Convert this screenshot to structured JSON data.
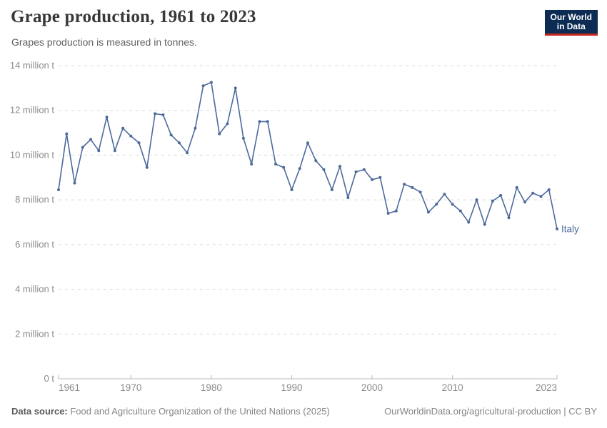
{
  "header": {
    "title": "Grape production, 1961 to 2023",
    "subtitle": "Grapes production is measured in tonnes.",
    "logo": {
      "line1": "Our World",
      "line2": "in Data",
      "bg_color": "#0d2c54",
      "accent_color": "#c5281c"
    }
  },
  "footer": {
    "source_label": "Data source:",
    "source_text": " Food and Agriculture Organization of the United Nations (2025)",
    "credit": "OurWorldinData.org/agricultural-production | CC BY"
  },
  "chart_data": {
    "type": "line",
    "title": "Grape production, 1961 to 2023",
    "unit": "tonnes",
    "xlim": [
      1961,
      2023
    ],
    "ylim": [
      0,
      14
    ],
    "grid": "horizontal-dashed",
    "legend_position": "end-of-line-label",
    "x": [
      1961,
      1962,
      1963,
      1964,
      1965,
      1966,
      1967,
      1968,
      1969,
      1970,
      1971,
      1972,
      1973,
      1974,
      1975,
      1976,
      1977,
      1978,
      1979,
      1980,
      1981,
      1982,
      1983,
      1984,
      1985,
      1986,
      1987,
      1988,
      1989,
      1990,
      1991,
      1992,
      1993,
      1994,
      1995,
      1996,
      1997,
      1998,
      1999,
      2000,
      2001,
      2002,
      2003,
      2004,
      2005,
      2006,
      2007,
      2008,
      2009,
      2010,
      2011,
      2012,
      2013,
      2014,
      2015,
      2016,
      2017,
      2018,
      2019,
      2020,
      2021,
      2022,
      2023
    ],
    "series": [
      {
        "name": "Italy",
        "color": "#4c6a9c",
        "unit_scale": "million tonnes",
        "values": [
          8.45,
          10.95,
          8.75,
          10.35,
          10.7,
          10.2,
          11.7,
          10.2,
          11.2,
          10.85,
          10.55,
          9.45,
          11.85,
          11.8,
          10.9,
          10.55,
          10.1,
          11.2,
          13.1,
          13.25,
          10.95,
          11.4,
          13.0,
          10.75,
          9.6,
          11.5,
          11.5,
          9.6,
          9.45,
          8.45,
          9.4,
          10.55,
          9.75,
          9.35,
          8.45,
          9.5,
          8.1,
          9.25,
          9.35,
          8.9,
          9.0,
          7.4,
          7.5,
          8.7,
          8.55,
          8.35,
          7.45,
          7.8,
          8.25,
          7.8,
          7.5,
          7.0,
          8.0,
          6.9,
          7.95,
          8.2,
          7.2,
          8.55,
          7.9,
          8.3,
          8.15,
          8.45,
          6.7
        ]
      }
    ],
    "y_ticks": [
      {
        "v": 0,
        "label": "0 t"
      },
      {
        "v": 2,
        "label": "2 million t"
      },
      {
        "v": 4,
        "label": "4 million t"
      },
      {
        "v": 6,
        "label": "6 million t"
      },
      {
        "v": 8,
        "label": "8 million t"
      },
      {
        "v": 10,
        "label": "10 million t"
      },
      {
        "v": 12,
        "label": "12 million t"
      },
      {
        "v": 14,
        "label": "14 million t"
      }
    ],
    "x_ticks": [
      {
        "v": 1961,
        "label": "1961",
        "anchor": "start"
      },
      {
        "v": 1970,
        "label": "1970",
        "anchor": "middle"
      },
      {
        "v": 1980,
        "label": "1980",
        "anchor": "middle"
      },
      {
        "v": 1990,
        "label": "1990",
        "anchor": "middle"
      },
      {
        "v": 2000,
        "label": "2000",
        "anchor": "middle"
      },
      {
        "v": 2010,
        "label": "2010",
        "anchor": "middle"
      },
      {
        "v": 2023,
        "label": "2023",
        "anchor": "end"
      }
    ],
    "colors": {
      "grid": "#d9d9d9",
      "axis": "#b8b8b8",
      "tick_text": "#8b8b8b"
    }
  }
}
